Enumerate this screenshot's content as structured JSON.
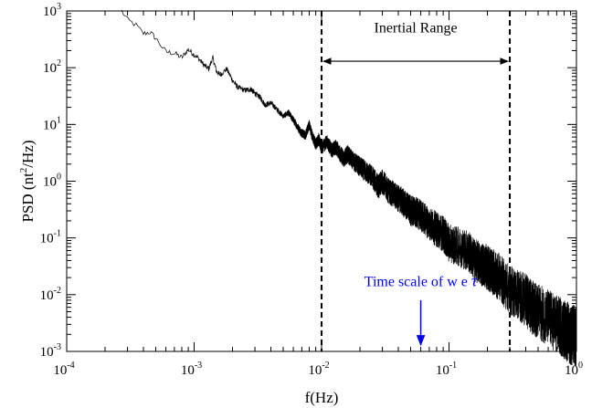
{
  "chart_data": {
    "type": "line",
    "xlabel": "f(Hz)",
    "ylabel_main": "PSD (nt",
    "ylabel_sup": "2",
    "ylabel_tail": "/Hz)",
    "xscale": "log",
    "yscale": "log",
    "xlim": [
      0.0001,
      1
    ],
    "ylim": [
      0.001,
      1000
    ],
    "x_ticks": [
      {
        "base": "10",
        "exp": "-4",
        "value": 0.0001
      },
      {
        "base": "10",
        "exp": "-3",
        "value": 0.001
      },
      {
        "base": "10",
        "exp": "-2",
        "value": 0.01
      },
      {
        "base": "10",
        "exp": "-1",
        "value": 0.1
      },
      {
        "base": "10",
        "exp": "0",
        "value": 1
      }
    ],
    "y_ticks": [
      {
        "base": "10",
        "exp": "-3",
        "value": 0.001
      },
      {
        "base": "10",
        "exp": "-2",
        "value": 0.01
      },
      {
        "base": "10",
        "exp": "-1",
        "value": 0.1
      },
      {
        "base": "10",
        "exp": "0",
        "value": 1
      },
      {
        "base": "10",
        "exp": "1",
        "value": 10
      },
      {
        "base": "10",
        "exp": "2",
        "value": 100
      },
      {
        "base": "10",
        "exp": "3",
        "value": 1000
      }
    ],
    "grid": false,
    "series": [
      {
        "color": "#000000",
        "x": [
          0.00027,
          0.0003,
          0.00035,
          0.0004,
          0.00045,
          0.0005,
          0.0006,
          0.0007,
          0.0008,
          0.0009,
          0.001,
          0.0011,
          0.0012,
          0.0013,
          0.0014,
          0.0015,
          0.0016,
          0.0018,
          0.002,
          0.0022,
          0.0025,
          0.0028,
          0.003,
          0.0033,
          0.0036,
          0.004,
          0.0045,
          0.005,
          0.0055,
          0.006,
          0.0065,
          0.007,
          0.0075,
          0.008,
          0.0085,
          0.009,
          0.0095,
          0.01,
          0.011,
          0.012,
          0.013,
          0.014,
          0.015,
          0.016,
          0.018,
          0.02,
          0.022,
          0.025,
          0.028,
          0.03,
          0.033,
          0.036,
          0.04,
          0.045,
          0.05,
          0.055,
          0.06,
          0.07,
          0.08,
          0.09,
          0.1,
          0.12,
          0.14,
          0.16,
          0.18,
          0.2,
          0.22,
          0.25,
          0.3,
          0.35,
          0.4,
          0.45,
          0.5,
          0.6,
          0.7,
          0.8,
          0.9,
          1.0
        ],
        "y": [
          1000,
          700,
          560,
          400,
          420,
          330,
          190,
          180,
          150,
          210,
          170,
          140,
          110,
          95,
          150,
          85,
          75,
          95,
          60,
          45,
          40,
          42,
          35,
          30,
          22,
          24,
          18,
          14,
          16,
          12,
          9,
          7,
          6.5,
          10,
          6,
          4.5,
          5.5,
          3.8,
          5,
          3.5,
          4,
          3,
          2.5,
          3,
          2.2,
          1.8,
          1.5,
          1.2,
          0.8,
          1.0,
          0.7,
          0.6,
          0.5,
          0.4,
          0.3,
          0.28,
          0.25,
          0.18,
          0.14,
          0.12,
          0.08,
          0.07,
          0.06,
          0.04,
          0.035,
          0.03,
          0.025,
          0.02,
          0.012,
          0.01,
          0.008,
          0.006,
          0.005,
          0.004,
          0.003,
          0.0025,
          0.002,
          0.0018
        ],
        "noise_spread": "increases with frequency"
      }
    ],
    "vlines": [
      {
        "x": 0.01,
        "style": "dashed",
        "color": "#000000"
      },
      {
        "x": 0.3,
        "style": "dashed",
        "color": "#000000"
      }
    ],
    "annotations": [
      {
        "text": "Inertial Range",
        "type": "double-arrow",
        "x_from": 0.01,
        "x_to": 0.3,
        "y": 130,
        "text_y": 500,
        "color": "#000000"
      },
      {
        "text": "Time scale of w e ",
        "symbol": "τ",
        "type": "down-arrow",
        "x": 0.06,
        "y_from": 0.008,
        "y_to": 0.0013,
        "text_y": 0.017,
        "color": "#0000ee"
      }
    ]
  }
}
